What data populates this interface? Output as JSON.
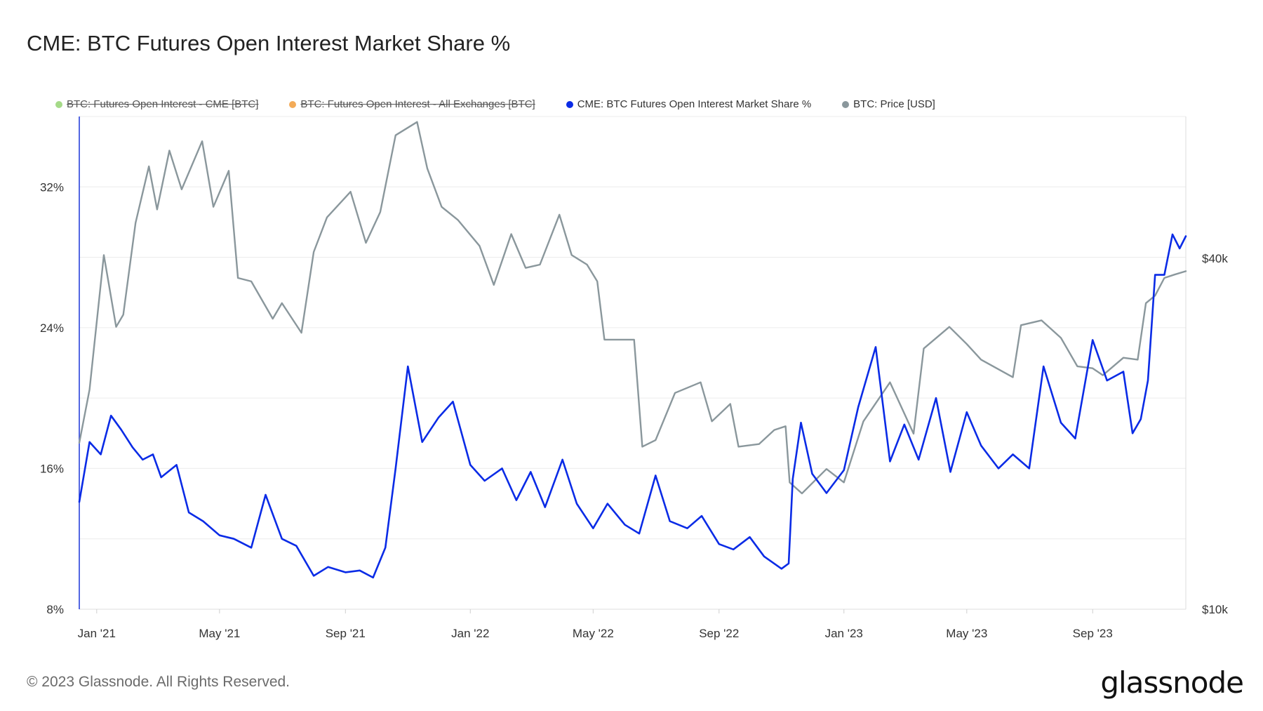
{
  "title": "CME: BTC Futures Open Interest Market Share %",
  "legend": [
    {
      "label": "BTC: Futures Open Interest - CME [BTC]",
      "color": "#8fd16a",
      "hidden": true
    },
    {
      "label": "BTC: Futures Open Interest - All Exchanges [BTC]",
      "color": "#f0962e",
      "hidden": true
    },
    {
      "label": "CME: BTC Futures Open Interest Market Share %",
      "color": "#0a2be6",
      "hidden": false
    },
    {
      "label": "BTC: Price [USD]",
      "color": "#8a979c",
      "hidden": false
    }
  ],
  "footer": "© 2023 Glassnode. All Rights Reserved.",
  "logo": "glassnode",
  "chart_data": {
    "type": "line",
    "title": "CME: BTC Futures Open Interest Market Share %",
    "x_ticks": [
      "Jan '21",
      "May '21",
      "Sep '21",
      "Jan '22",
      "May '22",
      "Sep '22",
      "Jan '23",
      "May '23",
      "Sep '23"
    ],
    "x_range": [
      "2020-12-15",
      "2023-12-01"
    ],
    "y_left": {
      "ticks": [
        "8%",
        "16%",
        "24%",
        "32%"
      ],
      "range": [
        8,
        36
      ],
      "unit": "%"
    },
    "y_right": {
      "ticks": [
        "$10k",
        "$40k"
      ],
      "range": [
        10000,
        70000
      ],
      "scale": "log"
    },
    "grid": true,
    "legend_position": "top",
    "series": [
      {
        "name": "CME: BTC Futures Open Interest Market Share %",
        "color": "#0a2be6",
        "axis": "left",
        "x": [
          "2020-12-15",
          "2020-12-25",
          "2021-01-05",
          "2021-01-15",
          "2021-01-25",
          "2021-02-05",
          "2021-02-15",
          "2021-02-25",
          "2021-03-05",
          "2021-03-20",
          "2021-04-01",
          "2021-04-15",
          "2021-05-01",
          "2021-05-15",
          "2021-06-01",
          "2021-06-15",
          "2021-07-01",
          "2021-07-15",
          "2021-08-01",
          "2021-08-15",
          "2021-09-01",
          "2021-09-15",
          "2021-09-28",
          "2021-10-10",
          "2021-10-20",
          "2021-11-01",
          "2021-11-15",
          "2021-12-01",
          "2021-12-15",
          "2022-01-01",
          "2022-01-15",
          "2022-02-01",
          "2022-02-15",
          "2022-03-01",
          "2022-03-15",
          "2022-04-01",
          "2022-04-15",
          "2022-05-01",
          "2022-05-15",
          "2022-06-01",
          "2022-06-15",
          "2022-07-01",
          "2022-07-15",
          "2022-08-01",
          "2022-08-15",
          "2022-09-01",
          "2022-09-15",
          "2022-10-01",
          "2022-10-15",
          "2022-11-01",
          "2022-11-08",
          "2022-11-12",
          "2022-11-20",
          "2022-12-01",
          "2022-12-15",
          "2023-01-01",
          "2023-01-15",
          "2023-02-01",
          "2023-02-15",
          "2023-03-01",
          "2023-03-15",
          "2023-04-01",
          "2023-04-15",
          "2023-05-01",
          "2023-05-15",
          "2023-06-01",
          "2023-06-15",
          "2023-07-01",
          "2023-07-15",
          "2023-08-01",
          "2023-08-15",
          "2023-09-01",
          "2023-09-15",
          "2023-10-01",
          "2023-10-10",
          "2023-10-18",
          "2023-10-25",
          "2023-11-01",
          "2023-11-10",
          "2023-11-18",
          "2023-11-25",
          "2023-12-01"
        ],
        "values": [
          14.1,
          17.5,
          16.8,
          19.0,
          18.2,
          17.2,
          16.5,
          16.8,
          15.5,
          16.2,
          13.5,
          13.0,
          12.2,
          12.0,
          11.5,
          14.5,
          12.0,
          11.6,
          9.9,
          10.4,
          10.1,
          10.2,
          9.8,
          11.5,
          16.0,
          21.8,
          17.5,
          18.9,
          19.8,
          16.2,
          15.3,
          16.0,
          14.2,
          15.8,
          13.8,
          16.5,
          14.0,
          12.6,
          14.0,
          12.8,
          12.3,
          15.6,
          13.0,
          12.6,
          13.3,
          11.7,
          11.4,
          12.1,
          11.0,
          10.3,
          10.6,
          15.4,
          18.6,
          15.7,
          14.6,
          15.9,
          19.5,
          22.9,
          16.4,
          18.5,
          16.5,
          20.0,
          15.8,
          19.2,
          17.3,
          16.0,
          16.8,
          16.0,
          21.8,
          18.6,
          17.7,
          23.3,
          21.0,
          21.5,
          18.0,
          18.8,
          21.0,
          27.0,
          27.0,
          29.3,
          28.5,
          29.2
        ]
      },
      {
        "name": "BTC: Price [USD]",
        "color": "#8a979c",
        "axis": "right",
        "x": [
          "2020-12-15",
          "2020-12-25",
          "2021-01-08",
          "2021-01-20",
          "2021-01-27",
          "2021-02-08",
          "2021-02-21",
          "2021-03-01",
          "2021-03-13",
          "2021-03-25",
          "2021-04-14",
          "2021-04-25",
          "2021-05-10",
          "2021-05-19",
          "2021-06-01",
          "2021-06-22",
          "2021-07-01",
          "2021-07-20",
          "2021-08-01",
          "2021-08-14",
          "2021-09-06",
          "2021-09-21",
          "2021-10-05",
          "2021-10-20",
          "2021-11-10",
          "2021-11-20",
          "2021-12-04",
          "2021-12-20",
          "2022-01-10",
          "2022-01-24",
          "2022-02-10",
          "2022-02-24",
          "2022-03-10",
          "2022-03-29",
          "2022-04-10",
          "2022-04-25",
          "2022-05-05",
          "2022-05-12",
          "2022-05-25",
          "2022-06-10",
          "2022-06-18",
          "2022-07-01",
          "2022-07-20",
          "2022-08-14",
          "2022-08-25",
          "2022-09-12",
          "2022-09-20",
          "2022-10-10",
          "2022-10-25",
          "2022-11-05",
          "2022-11-09",
          "2022-11-21",
          "2022-12-15",
          "2023-01-01",
          "2023-01-20",
          "2023-02-15",
          "2023-03-10",
          "2023-03-20",
          "2023-04-14",
          "2023-05-01",
          "2023-05-15",
          "2023-06-15",
          "2023-06-23",
          "2023-07-13",
          "2023-08-01",
          "2023-08-17",
          "2023-09-01",
          "2023-09-11",
          "2023-10-01",
          "2023-10-15",
          "2023-10-23",
          "2023-11-01",
          "2023-11-10",
          "2023-11-20",
          "2023-12-01"
        ],
        "values": [
          19300,
          23800,
          40500,
          30500,
          32000,
          46000,
          57500,
          48500,
          61200,
          52500,
          63500,
          49000,
          56500,
          37000,
          36500,
          31500,
          33500,
          29800,
          41000,
          47000,
          52000,
          42500,
          48000,
          65000,
          68500,
          57000,
          49000,
          46500,
          42000,
          36000,
          44000,
          38500,
          39000,
          47500,
          40500,
          39000,
          36500,
          29000,
          29000,
          29000,
          19000,
          19500,
          23500,
          24500,
          21000,
          22500,
          19000,
          19200,
          20300,
          20600,
          16500,
          15800,
          17400,
          16500,
          21000,
          24500,
          20000,
          28000,
          30500,
          28500,
          26800,
          25000,
          30700,
          31300,
          29200,
          26100,
          25900,
          25200,
          27000,
          26800,
          33500,
          34500,
          37000,
          37500,
          38000
        ]
      }
    ]
  }
}
